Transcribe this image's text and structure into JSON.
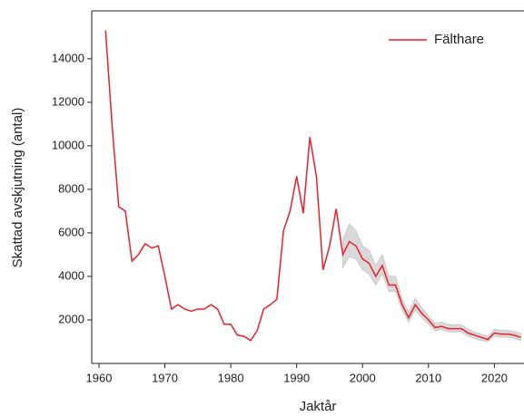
{
  "chart_data": {
    "type": "line",
    "x_label": "Jaktår",
    "y_label": "Skattad avskjutning (antal)",
    "x": [
      1961,
      1962,
      1963,
      1964,
      1965,
      1966,
      1967,
      1968,
      1969,
      1970,
      1971,
      1972,
      1973,
      1974,
      1975,
      1976,
      1977,
      1978,
      1979,
      1980,
      1981,
      1982,
      1983,
      1984,
      1985,
      1986,
      1987,
      1988,
      1989,
      1990,
      1991,
      1992,
      1993,
      1994,
      1995,
      1996,
      1997,
      1998,
      1999,
      2000,
      2001,
      2002,
      2003,
      2004,
      2005,
      2006,
      2007,
      2008,
      2009,
      2010,
      2011,
      2012,
      2013,
      2014,
      2015,
      2016,
      2017,
      2018,
      2019,
      2020,
      2021,
      2022,
      2023,
      2024
    ],
    "series": [
      {
        "name": "Fälthare",
        "color": "#e8202a",
        "values": [
          15300,
          10900,
          7200,
          7000,
          4700,
          5000,
          5500,
          5300,
          5400,
          4000,
          2500,
          2700,
          2500,
          2400,
          2500,
          2500,
          2700,
          2500,
          1800,
          1800,
          1300,
          1250,
          1050,
          1500,
          2500,
          2700,
          2950,
          6100,
          7000,
          8600,
          6900,
          10400,
          8600,
          4300,
          5400,
          7100,
          5000,
          5600,
          5400,
          4800,
          4600,
          4000,
          4500,
          3600,
          3600,
          2700,
          2100,
          2700,
          2300,
          2000,
          1650,
          1700,
          1600,
          1600,
          1600,
          1400,
          1300,
          1200,
          1100,
          1400,
          1350,
          1350,
          1300,
          1200
        ]
      }
    ],
    "band": {
      "color": "#d9d9d9",
      "x": [
        1997,
        1998,
        1999,
        2000,
        2001,
        2002,
        2003,
        2004,
        2005,
        2006,
        2007,
        2008,
        2009,
        2010,
        2011,
        2012,
        2013,
        2014,
        2015,
        2016,
        2017,
        2018,
        2019,
        2020,
        2021,
        2022,
        2023,
        2024
      ],
      "lower": [
        4400,
        4900,
        4800,
        4300,
        4100,
        3600,
        4100,
        3300,
        3300,
        2450,
        1900,
        2450,
        2100,
        1800,
        1500,
        1550,
        1450,
        1450,
        1450,
        1250,
        1150,
        1050,
        1000,
        1250,
        1200,
        1200,
        1150,
        1050
      ],
      "upper": [
        5700,
        6400,
        6100,
        5400,
        5200,
        4500,
        5000,
        4000,
        4000,
        3000,
        2350,
        3000,
        2550,
        2200,
        1850,
        1900,
        1800,
        1780,
        1780,
        1580,
        1450,
        1350,
        1250,
        1580,
        1520,
        1520,
        1480,
        1380
      ]
    },
    "xlim": [
      1958.9,
      2024.5
    ],
    "ylim": [
      0,
      16200
    ],
    "xticks": [
      1960,
      1970,
      1980,
      1990,
      2000,
      2010,
      2020
    ],
    "yticks": [
      2000,
      4000,
      6000,
      8000,
      10000,
      12000,
      14000
    ],
    "legend": "upper right"
  }
}
